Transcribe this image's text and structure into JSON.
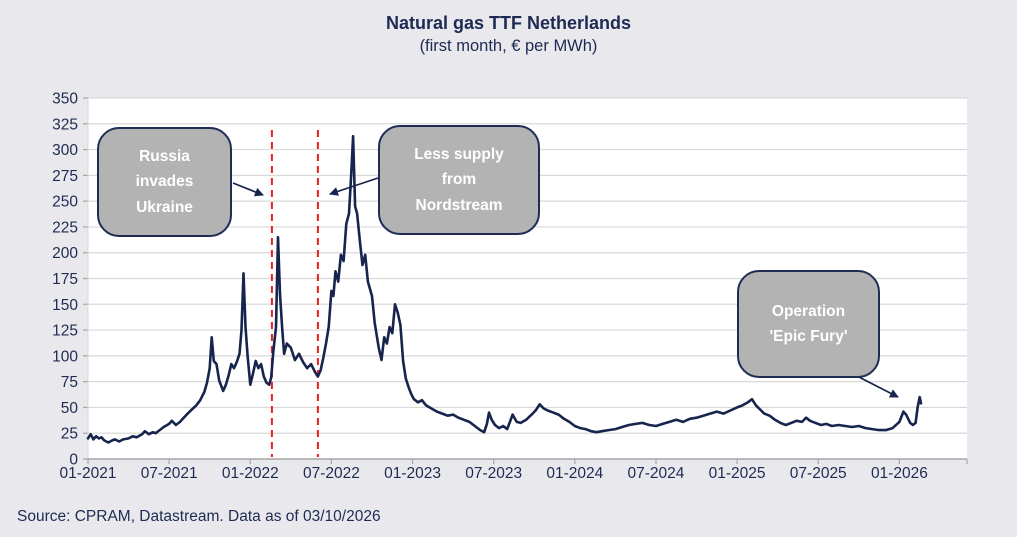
{
  "title": "Natural gas TTF Netherlands",
  "subtitle": "(first month, € per MWh)",
  "source": "Source: CPRAM, Datastream. Data as of 03/10/2026",
  "colors": {
    "background": "#e9e9ed",
    "plot_background": "#ffffff",
    "gridline": "#d9d9d9",
    "axis": "#a6a6a6",
    "line": "#17244d",
    "event_line": "#ef1c1c",
    "callout_fill": "#b3b3b3",
    "callout_border": "#1f2d55",
    "callout_text": "#ffffff",
    "text": "#1e2a52"
  },
  "chart_data": {
    "type": "line",
    "title": "Natural gas TTF Netherlands",
    "subtitle": "(first month, € per MWh)",
    "xlabel": "",
    "ylabel": "€ per MWh",
    "ylim": [
      0,
      350
    ],
    "ytick_step": 25,
    "yticks": [
      0,
      25,
      50,
      75,
      100,
      125,
      150,
      175,
      200,
      225,
      250,
      275,
      300,
      325,
      350
    ],
    "xlim_months": [
      0,
      65
    ],
    "grid": "horizontal",
    "legend": "none",
    "xticks": [
      {
        "m": 0,
        "label": "01-2021"
      },
      {
        "m": 6,
        "label": "07-2021"
      },
      {
        "m": 12,
        "label": "01-2022"
      },
      {
        "m": 18,
        "label": "07-2022"
      },
      {
        "m": 24,
        "label": "01-2023"
      },
      {
        "m": 30,
        "label": "07-2023"
      },
      {
        "m": 36,
        "label": "01-2024"
      },
      {
        "m": 42,
        "label": "07-2024"
      },
      {
        "m": 48,
        "label": "01-2025"
      },
      {
        "m": 54,
        "label": "07-2025"
      },
      {
        "m": 60,
        "label": "01-2026"
      }
    ],
    "events": [
      {
        "m": 13.6,
        "annotation": "russia-invades-ukraine"
      },
      {
        "m": 17.0,
        "annotation": "less-supply-nordstream"
      }
    ],
    "annotations": [
      {
        "name": "russia-invades-ukraine",
        "lines": [
          "Russia",
          "invades",
          "Ukraine"
        ]
      },
      {
        "name": "less-supply-nordstream",
        "lines": [
          "Less supply",
          "from",
          "Nordstream"
        ]
      },
      {
        "name": "operation-epic-fury",
        "lines": [
          "Operation",
          "'Epic Fury'"
        ]
      }
    ],
    "series": [
      {
        "points": [
          [
            0,
            20
          ],
          [
            0.2,
            24
          ],
          [
            0.4,
            19
          ],
          [
            0.6,
            22
          ],
          [
            0.8,
            20
          ],
          [
            1,
            21
          ],
          [
            1.2,
            18
          ],
          [
            1.5,
            16
          ],
          [
            1.8,
            18
          ],
          [
            2,
            19
          ],
          [
            2.3,
            17
          ],
          [
            2.6,
            19
          ],
          [
            3,
            20
          ],
          [
            3.3,
            22
          ],
          [
            3.6,
            21
          ],
          [
            4,
            24
          ],
          [
            4.2,
            27
          ],
          [
            4.5,
            24
          ],
          [
            4.8,
            26
          ],
          [
            5,
            25
          ],
          [
            5.3,
            28
          ],
          [
            5.6,
            31
          ],
          [
            6,
            34
          ],
          [
            6.2,
            37
          ],
          [
            6.5,
            33
          ],
          [
            6.8,
            36
          ],
          [
            7,
            39
          ],
          [
            7.3,
            43
          ],
          [
            7.6,
            47
          ],
          [
            8,
            52
          ],
          [
            8.3,
            57
          ],
          [
            8.6,
            65
          ],
          [
            8.8,
            74
          ],
          [
            9,
            88
          ],
          [
            9.15,
            118
          ],
          [
            9.3,
            95
          ],
          [
            9.5,
            92
          ],
          [
            9.7,
            76
          ],
          [
            10,
            66
          ],
          [
            10.2,
            72
          ],
          [
            10.4,
            81
          ],
          [
            10.6,
            92
          ],
          [
            10.8,
            88
          ],
          [
            11,
            94
          ],
          [
            11.2,
            102
          ],
          [
            11.35,
            125
          ],
          [
            11.5,
            180
          ],
          [
            11.65,
            128
          ],
          [
            11.8,
            100
          ],
          [
            12,
            72
          ],
          [
            12.2,
            83
          ],
          [
            12.4,
            95
          ],
          [
            12.6,
            88
          ],
          [
            12.8,
            92
          ],
          [
            13,
            80
          ],
          [
            13.2,
            74
          ],
          [
            13.4,
            72
          ],
          [
            13.55,
            79
          ],
          [
            13.7,
            104
          ],
          [
            13.9,
            128
          ],
          [
            14.05,
            215
          ],
          [
            14.2,
            160
          ],
          [
            14.35,
            128
          ],
          [
            14.5,
            102
          ],
          [
            14.7,
            112
          ],
          [
            15,
            108
          ],
          [
            15.3,
            96
          ],
          [
            15.6,
            102
          ],
          [
            15.9,
            94
          ],
          [
            16.2,
            88
          ],
          [
            16.5,
            92
          ],
          [
            16.8,
            84
          ],
          [
            17,
            80
          ],
          [
            17.2,
            86
          ],
          [
            17.4,
            98
          ],
          [
            17.6,
            112
          ],
          [
            17.8,
            128
          ],
          [
            18,
            163
          ],
          [
            18.15,
            158
          ],
          [
            18.3,
            182
          ],
          [
            18.5,
            172
          ],
          [
            18.7,
            198
          ],
          [
            18.9,
            192
          ],
          [
            19.1,
            228
          ],
          [
            19.3,
            238
          ],
          [
            19.45,
            272
          ],
          [
            19.6,
            313
          ],
          [
            19.75,
            245
          ],
          [
            19.9,
            238
          ],
          [
            20.1,
            212
          ],
          [
            20.3,
            188
          ],
          [
            20.5,
            198
          ],
          [
            20.7,
            172
          ],
          [
            21,
            158
          ],
          [
            21.2,
            132
          ],
          [
            21.5,
            108
          ],
          [
            21.7,
            96
          ],
          [
            21.9,
            118
          ],
          [
            22.1,
            112
          ],
          [
            22.3,
            128
          ],
          [
            22.5,
            122
          ],
          [
            22.7,
            150
          ],
          [
            22.9,
            142
          ],
          [
            23.1,
            130
          ],
          [
            23.3,
            95
          ],
          [
            23.5,
            78
          ],
          [
            23.7,
            70
          ],
          [
            23.9,
            63
          ],
          [
            24.1,
            58
          ],
          [
            24.4,
            55
          ],
          [
            24.7,
            57
          ],
          [
            25,
            52
          ],
          [
            25.4,
            49
          ],
          [
            25.8,
            46
          ],
          [
            26.2,
            44
          ],
          [
            26.6,
            42
          ],
          [
            27,
            43
          ],
          [
            27.4,
            40
          ],
          [
            27.8,
            38
          ],
          [
            28.2,
            36
          ],
          [
            28.6,
            32
          ],
          [
            29,
            28
          ],
          [
            29.3,
            26
          ],
          [
            29.5,
            34
          ],
          [
            29.65,
            45
          ],
          [
            29.85,
            38
          ],
          [
            30.1,
            33
          ],
          [
            30.4,
            30
          ],
          [
            30.7,
            32
          ],
          [
            31,
            29
          ],
          [
            31.2,
            36
          ],
          [
            31.4,
            43
          ],
          [
            31.7,
            36
          ],
          [
            32,
            35
          ],
          [
            32.4,
            38
          ],
          [
            32.8,
            43
          ],
          [
            33.1,
            47
          ],
          [
            33.4,
            53
          ],
          [
            33.7,
            49
          ],
          [
            34,
            47
          ],
          [
            34.4,
            45
          ],
          [
            34.8,
            43
          ],
          [
            35.2,
            39
          ],
          [
            35.6,
            36
          ],
          [
            36,
            32
          ],
          [
            36.4,
            30
          ],
          [
            36.8,
            29
          ],
          [
            37.2,
            27
          ],
          [
            37.6,
            26
          ],
          [
            38,
            27
          ],
          [
            38.5,
            28
          ],
          [
            39,
            29
          ],
          [
            39.5,
            31
          ],
          [
            40,
            33
          ],
          [
            40.5,
            34
          ],
          [
            41,
            35
          ],
          [
            41.5,
            33
          ],
          [
            42,
            32
          ],
          [
            42.5,
            34
          ],
          [
            43,
            36
          ],
          [
            43.5,
            38
          ],
          [
            44,
            36
          ],
          [
            44.5,
            39
          ],
          [
            45,
            40
          ],
          [
            45.5,
            42
          ],
          [
            46,
            44
          ],
          [
            46.5,
            46
          ],
          [
            47,
            44
          ],
          [
            47.5,
            47
          ],
          [
            48,
            50
          ],
          [
            48.4,
            52
          ],
          [
            48.8,
            55
          ],
          [
            49.1,
            58
          ],
          [
            49.4,
            52
          ],
          [
            49.7,
            48
          ],
          [
            50,
            44
          ],
          [
            50.4,
            42
          ],
          [
            50.8,
            38
          ],
          [
            51.2,
            35
          ],
          [
            51.6,
            33
          ],
          [
            52,
            35
          ],
          [
            52.4,
            37
          ],
          [
            52.8,
            36
          ],
          [
            53.1,
            40
          ],
          [
            53.4,
            37
          ],
          [
            53.8,
            35
          ],
          [
            54.2,
            33
          ],
          [
            54.6,
            34
          ],
          [
            55,
            32
          ],
          [
            55.5,
            33
          ],
          [
            56,
            32
          ],
          [
            56.5,
            31
          ],
          [
            57,
            32
          ],
          [
            57.5,
            30
          ],
          [
            58,
            29
          ],
          [
            58.5,
            28
          ],
          [
            59,
            28
          ],
          [
            59.5,
            30
          ],
          [
            60,
            36
          ],
          [
            60.3,
            46
          ],
          [
            60.5,
            43
          ],
          [
            60.8,
            35
          ],
          [
            61,
            33
          ],
          [
            61.2,
            35
          ],
          [
            61.35,
            50
          ],
          [
            61.5,
            60
          ],
          [
            61.6,
            54
          ]
        ]
      }
    ]
  }
}
